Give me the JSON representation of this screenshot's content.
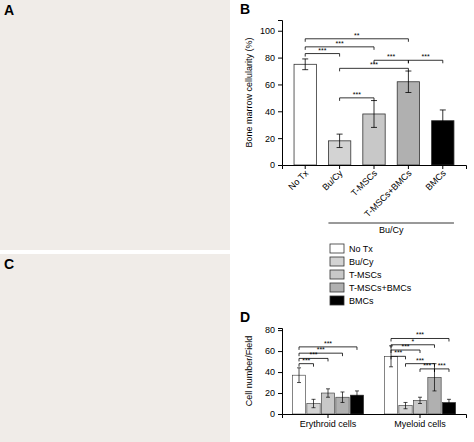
{
  "chart_data": [
    {
      "type": "image",
      "title": "A",
      "color": "#f0ece8"
    },
    {
      "type": "bar",
      "title": "B",
      "categories": [
        "No Tx",
        "Bu/Cy",
        "T-MSCs",
        "T-MSCs+BMCs",
        "BMCs"
      ],
      "values": [
        75,
        18,
        38,
        62,
        33
      ],
      "errors": [
        4,
        5,
        10,
        8,
        8
      ],
      "colors": [
        "#ffffff",
        "#d3d3d3",
        "#c8c8c8",
        "#b0b0b0",
        "#000000"
      ],
      "ylabel": "Bone marrow cellularity (%)",
      "ylim": [
        0,
        108
      ],
      "yticks": [
        0,
        20,
        40,
        60,
        80,
        100
      ],
      "annotations": [
        {
          "text": "***",
          "x1": "No Tx",
          "x2": "Bu/Cy",
          "y": 83
        },
        {
          "text": "***",
          "x1": "No Tx",
          "x2": "T-MSCs",
          "y": 88
        },
        {
          "text": "**",
          "x1": "No Tx",
          "x2": "T-MSCs+BMCs",
          "y": 94
        },
        {
          "text": "***",
          "x1": "Bu/Cy",
          "x2": "T-MSCs",
          "y": 50
        },
        {
          "text": "***",
          "x1": "Bu/Cy",
          "x2": "T-MSCs+BMCs",
          "y": 72
        },
        {
          "text": "***",
          "x1": "T-MSCs",
          "x2": "T-MSCs+BMCs",
          "y": 78
        },
        {
          "text": "***",
          "x1": "T-MSCs+BMCs",
          "x2": "BMCs",
          "y": 78
        },
        {
          "text": "Bu/Cy",
          "x1": "Bu/Cy",
          "x2": "BMCs"
        }
      ]
    },
    {
      "type": "image",
      "title": "C",
      "color": "#f0ece8"
    },
    {
      "type": "bar",
      "title": "D",
      "categories": [
        "Erythroid cells",
        "Myeloid cells"
      ],
      "series": [
        {
          "name": "No Tx",
          "color": "#ffffff",
          "values": [
            37,
            55
          ],
          "errors": [
            7,
            10
          ]
        },
        {
          "name": "Bu/Cy",
          "color": "#d3d3d3",
          "values": [
            10,
            8
          ],
          "errors": [
            4,
            3
          ]
        },
        {
          "name": "T-MSCs",
          "color": "#c8c8c8",
          "values": [
            20,
            13
          ],
          "errors": [
            4,
            3
          ]
        },
        {
          "name": "T-MSCs+BMCs",
          "color": "#b0b0b0",
          "values": [
            16,
            35
          ],
          "errors": [
            5,
            13
          ]
        },
        {
          "name": "BMCs",
          "color": "#000000",
          "values": [
            18,
            11
          ],
          "errors": [
            4,
            3
          ]
        }
      ],
      "ylabel": "Cell number/Field",
      "ylim": [
        0,
        82
      ],
      "yticks": [
        0,
        20,
        40,
        60,
        80
      ],
      "legend": "top",
      "annotations": [
        {
          "text": "***",
          "category": "Erythroid cells",
          "x1": "No Tx",
          "x2": "Bu/Cy",
          "y": 48
        },
        {
          "text": "***",
          "category": "Erythroid cells",
          "x1": "No Tx",
          "x2": "T-MSCs",
          "y": 53
        },
        {
          "text": "***",
          "category": "Erythroid cells",
          "x1": "No Tx",
          "x2": "T-MSCs+BMCs",
          "y": 58
        },
        {
          "text": "***",
          "category": "Erythroid cells",
          "x1": "No Tx",
          "x2": "BMCs",
          "y": 64
        },
        {
          "text": "***",
          "category": "Myeloid cells",
          "x1": "No Tx",
          "x2": "Bu/Cy",
          "y": 55
        },
        {
          "text": "***",
          "category": "Myeloid cells",
          "x1": "No Tx",
          "x2": "T-MSCs",
          "y": 61
        },
        {
          "text": "*",
          "category": "Myeloid cells",
          "x1": "No Tx",
          "x2": "T-MSCs+BMCs",
          "y": 66
        },
        {
          "text": "***",
          "category": "Myeloid cells",
          "x1": "No Tx",
          "x2": "BMCs",
          "y": 72
        },
        {
          "text": "***",
          "category": "Myeloid cells",
          "x1": "Bu/Cy",
          "x2": "T-MSCs+BMCs",
          "y": 48
        },
        {
          "text": "***",
          "category": "Myeloid cells",
          "x1": "T-MSCs",
          "x2": "T-MSCs+BMCs",
          "y": 43
        },
        {
          "text": "***",
          "category": "Myeloid cells",
          "x1": "T-MSCs+BMCs",
          "x2": "BMCs",
          "y": 43
        }
      ]
    }
  ]
}
